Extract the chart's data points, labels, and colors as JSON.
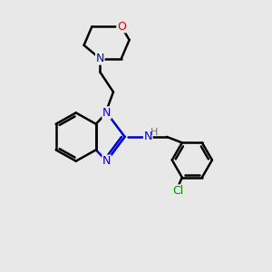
{
  "background_color": "#e8e8e8",
  "atom_colors": {
    "C": "#000000",
    "N": "#0000cc",
    "O": "#dd0000",
    "Cl": "#008800",
    "H": "#607080"
  },
  "bond_color": "#000000",
  "bond_width": 1.8,
  "figsize": [
    3.0,
    3.0
  ],
  "dpi": 100,
  "xlim": [
    0,
    10
  ],
  "ylim": [
    0,
    10
  ]
}
